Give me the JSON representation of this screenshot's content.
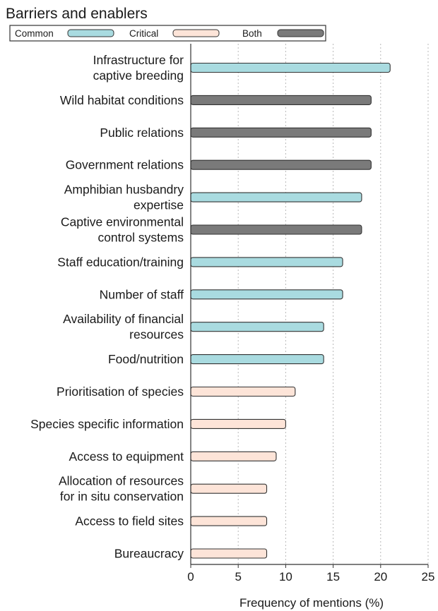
{
  "chart_data": {
    "type": "bar",
    "orientation": "horizontal",
    "title": "Barriers and enablers",
    "xlabel": "Frequency of mentions (%)",
    "ylabel": "",
    "xlim": [
      0,
      25
    ],
    "xticks": [
      0,
      5,
      10,
      15,
      20,
      25
    ],
    "grid": "vertical-dotted",
    "legend_position": "top",
    "legend": [
      {
        "key": "common",
        "name": "Common",
        "color": "#a9dbe0"
      },
      {
        "key": "critical",
        "name": "Critical",
        "color": "#fde4d8"
      },
      {
        "key": "both",
        "name": "Both",
        "color": "#7a7a7a"
      }
    ],
    "bars": [
      {
        "label": [
          "Infrastructure for",
          "captive breeding"
        ],
        "value": 21,
        "group": "common"
      },
      {
        "label": [
          "Wild habitat conditions"
        ],
        "value": 19,
        "group": "both"
      },
      {
        "label": [
          "Public relations"
        ],
        "value": 19,
        "group": "both"
      },
      {
        "label": [
          "Government relations"
        ],
        "value": 19,
        "group": "both"
      },
      {
        "label": [
          "Amphibian husbandry",
          "expertise"
        ],
        "value": 18,
        "group": "common"
      },
      {
        "label": [
          "Captive environmental",
          "control systems"
        ],
        "value": 18,
        "group": "both"
      },
      {
        "label": [
          "Staff education/training"
        ],
        "value": 16,
        "group": "common"
      },
      {
        "label": [
          "Number of staff"
        ],
        "value": 16,
        "group": "common"
      },
      {
        "label": [
          "Availability of financial",
          "resources"
        ],
        "value": 14,
        "group": "common"
      },
      {
        "label": [
          "Food/nutrition"
        ],
        "value": 14,
        "group": "common"
      },
      {
        "label": [
          "Prioritisation of species"
        ],
        "value": 11,
        "group": "critical"
      },
      {
        "label": [
          "Species specific information"
        ],
        "value": 10,
        "group": "critical"
      },
      {
        "label": [
          "Access to equipment"
        ],
        "value": 9,
        "group": "critical"
      },
      {
        "label": [
          "Allocation of resources",
          "for in situ conservation"
        ],
        "value": 8,
        "group": "critical"
      },
      {
        "label": [
          "Access to field sites"
        ],
        "value": 8,
        "group": "critical"
      },
      {
        "label": [
          "Bureaucracy"
        ],
        "value": 8,
        "group": "critical"
      }
    ]
  }
}
